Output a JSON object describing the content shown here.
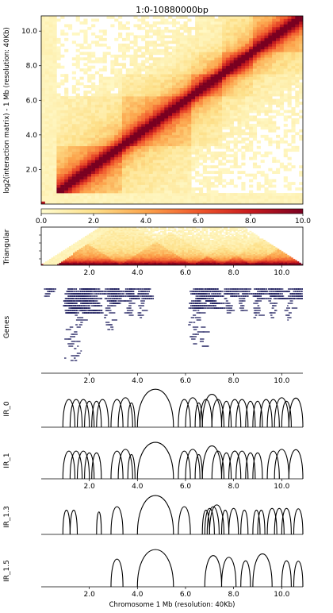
{
  "chart_data": [
    {
      "type": "heatmap",
      "title": "1:0-10880000bp",
      "ylabel": "log2(interaction matrix) - 1 Mb (resolution: 40Kb)",
      "xlim": [
        0,
        10.88
      ],
      "ylim": [
        0,
        10.88
      ],
      "yticks": [
        "2.0",
        "4.0",
        "6.0",
        "8.0",
        "10.0"
      ],
      "colorbar": {
        "min": 0.0,
        "max": 10.0,
        "ticks": [
          "0.0",
          "2.0",
          "4.0",
          "6.0",
          "8.0",
          "10.0"
        ],
        "colors": [
          "#fffccf",
          "#fde08a",
          "#fca44c",
          "#f0582c",
          "#c81a1e",
          "#7a0020"
        ]
      },
      "tads_mb": [
        [
          0.6,
          3.3
        ],
        [
          3.3,
          6.3
        ],
        [
          6.3,
          7.5
        ],
        [
          7.5,
          8.8
        ],
        [
          8.8,
          10.88
        ]
      ]
    },
    {
      "type": "heatmap",
      "ylabel": "Triangular",
      "xticks": [
        "2.0",
        "4.0",
        "6.0",
        "8.0",
        "10.0"
      ]
    },
    {
      "type": "table",
      "ylabel": "Genes",
      "xticks": [
        "2.0",
        "4.0",
        "6.0",
        "8.0",
        "10.0"
      ],
      "gene_clusters_mb": [
        [
          0.1,
          0.3
        ],
        [
          0.9,
          2.5
        ],
        [
          2.6,
          3.3
        ],
        [
          3.4,
          3.9
        ],
        [
          4.0,
          4.4
        ],
        [
          6.1,
          7.4
        ],
        [
          7.6,
          8.1
        ],
        [
          8.2,
          8.6
        ],
        [
          8.8,
          9.3
        ],
        [
          9.4,
          10.0
        ],
        [
          10.1,
          10.8
        ]
      ],
      "line_color": "#1f1f5f"
    },
    {
      "type": "line",
      "ylabel": "IR_0",
      "arcs_mb": [
        [
          0.9,
          1.4
        ],
        [
          1.2,
          1.7
        ],
        [
          1.5,
          2.0
        ],
        [
          1.8,
          2.2
        ],
        [
          2.1,
          2.5
        ],
        [
          2.3,
          2.8
        ],
        [
          2.9,
          3.4
        ],
        [
          3.2,
          3.8
        ],
        [
          3.6,
          3.9
        ],
        [
          4.0,
          5.5
        ],
        [
          5.7,
          6.2
        ],
        [
          6.0,
          6.6
        ],
        [
          6.4,
          6.7
        ],
        [
          6.6,
          7.1
        ],
        [
          6.7,
          7.5
        ],
        [
          7.1,
          7.6
        ],
        [
          7.5,
          7.9
        ],
        [
          7.8,
          8.3
        ],
        [
          8.1,
          8.6
        ],
        [
          8.5,
          8.9
        ],
        [
          8.8,
          9.2
        ],
        [
          9.1,
          9.6
        ],
        [
          9.4,
          9.9
        ],
        [
          9.7,
          10.3
        ],
        [
          10.0,
          10.4
        ],
        [
          10.3,
          10.88
        ]
      ],
      "xticks": []
    },
    {
      "type": "line",
      "ylabel": "IR_1",
      "arcs_mb": [
        [
          0.9,
          1.4
        ],
        [
          1.2,
          1.7
        ],
        [
          1.5,
          2.0
        ],
        [
          1.8,
          2.2
        ],
        [
          2.1,
          2.5
        ],
        [
          2.9,
          3.4
        ],
        [
          3.2,
          3.8
        ],
        [
          3.6,
          3.9
        ],
        [
          4.0,
          5.5
        ],
        [
          5.7,
          6.2
        ],
        [
          6.0,
          6.6
        ],
        [
          6.4,
          6.7
        ],
        [
          6.7,
          7.5
        ],
        [
          7.1,
          7.6
        ],
        [
          7.5,
          7.9
        ],
        [
          7.8,
          8.3
        ],
        [
          8.1,
          8.6
        ],
        [
          8.5,
          8.9
        ],
        [
          8.8,
          9.2
        ],
        [
          9.4,
          9.9
        ],
        [
          9.7,
          10.3
        ],
        [
          10.3,
          10.88
        ]
      ],
      "xticks": [
        "2.0",
        "4.0",
        "6.0",
        "8.0",
        "10.0"
      ]
    },
    {
      "type": "line",
      "ylabel": "IR_1.3",
      "arcs_mb": [
        [
          0.9,
          1.2
        ],
        [
          1.2,
          1.5
        ],
        [
          2.3,
          2.5
        ],
        [
          2.9,
          3.4
        ],
        [
          4.0,
          5.5
        ],
        [
          5.7,
          6.2
        ],
        [
          6.7,
          7.0
        ],
        [
          6.8,
          7.2
        ],
        [
          6.9,
          7.4
        ],
        [
          7.0,
          7.6
        ],
        [
          7.5,
          7.8
        ],
        [
          7.8,
          8.2
        ],
        [
          8.3,
          8.6
        ],
        [
          8.8,
          9.1
        ],
        [
          9.0,
          9.3
        ],
        [
          9.4,
          9.8
        ],
        [
          9.7,
          10.1
        ],
        [
          10.0,
          10.4
        ],
        [
          10.5,
          10.88
        ]
      ],
      "xticks": []
    },
    {
      "type": "line",
      "ylabel": "IR_1.5",
      "xlabel": "Chromosome 1 Mb (resolution: 40Kb)",
      "arcs_mb": [
        [
          2.9,
          3.4
        ],
        [
          4.0,
          5.5
        ],
        [
          6.8,
          7.5
        ],
        [
          7.5,
          8.1
        ],
        [
          8.3,
          8.7
        ],
        [
          8.8,
          9.6
        ],
        [
          10.0,
          10.4
        ],
        [
          10.5,
          10.88
        ]
      ],
      "xticks": [
        "2.0",
        "4.0",
        "6.0",
        "8.0",
        "10.0"
      ]
    }
  ]
}
